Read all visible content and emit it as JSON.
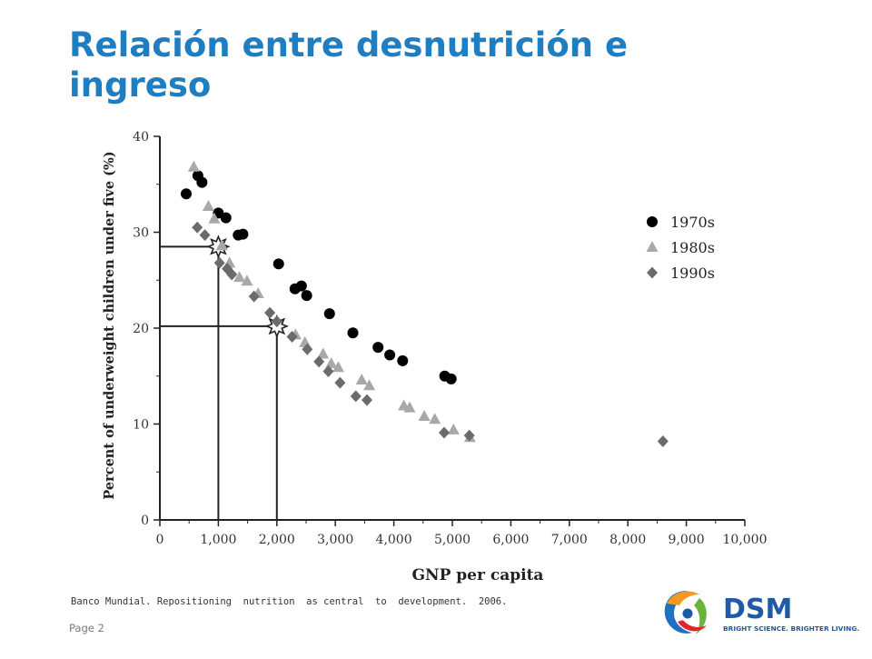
{
  "slide": {
    "title": "Relación entre desnutrición e ingreso",
    "source": "Banco Mundial. Repositioning  nutrition  as central  to  development.  2006.",
    "page_label": "Page 2"
  },
  "logo": {
    "name": "DSM",
    "tagline": "BRIGHT SCIENCE. BRIGHTER LIVING."
  },
  "colors": {
    "title": "#1f7dc2",
    "series_1970s": "#000000",
    "series_1980s": "#a8a8a8",
    "series_1990s": "#6b6b6b",
    "axis": "#222222",
    "logo_text": "#1f5aa6"
  },
  "chart_data": {
    "type": "scatter",
    "xlabel": "GNP per capita",
    "ylabel": "Percent of underweight children under five (%)",
    "xlim": [
      0,
      10000
    ],
    "ylim": [
      0,
      40
    ],
    "x_ticks": [
      "0",
      "1,000",
      "2,000",
      "3,000",
      "4,000",
      "5,000",
      "6,000",
      "7,000",
      "8,000",
      "9,000",
      "10,000"
    ],
    "y_ticks": [
      "0",
      "10",
      "20",
      "30",
      "40"
    ],
    "legend_position": "right",
    "series": [
      {
        "name": "1970s",
        "marker": "circle",
        "points": [
          [
            450,
            34
          ],
          [
            650,
            35.9
          ],
          [
            720,
            35.2
          ],
          [
            1000,
            32
          ],
          [
            1130,
            31.5
          ],
          [
            1340,
            29.7
          ],
          [
            1420,
            29.8
          ],
          [
            2030,
            26.7
          ],
          [
            2310,
            24.1
          ],
          [
            2420,
            24.4
          ],
          [
            2510,
            23.4
          ],
          [
            2900,
            21.5
          ],
          [
            3300,
            19.5
          ],
          [
            3730,
            18.0
          ],
          [
            3930,
            17.2
          ],
          [
            4150,
            16.6
          ],
          [
            4870,
            15.0
          ],
          [
            4980,
            14.7
          ]
        ]
      },
      {
        "name": "1980s",
        "marker": "triangle",
        "points": [
          [
            580,
            36.8
          ],
          [
            830,
            32.7
          ],
          [
            930,
            31.4
          ],
          [
            1060,
            28.6
          ],
          [
            1190,
            26.8
          ],
          [
            1360,
            25.3
          ],
          [
            1490,
            24.9
          ],
          [
            1680,
            23.6
          ],
          [
            2320,
            19.3
          ],
          [
            2480,
            18.5
          ],
          [
            2790,
            17.3
          ],
          [
            2930,
            16.3
          ],
          [
            3050,
            15.9
          ],
          [
            3450,
            14.6
          ],
          [
            3580,
            14.0
          ],
          [
            4170,
            11.9
          ],
          [
            4270,
            11.7
          ],
          [
            4520,
            10.8
          ],
          [
            4700,
            10.5
          ],
          [
            5020,
            9.4
          ],
          [
            5300,
            8.6
          ]
        ]
      },
      {
        "name": "1990s",
        "marker": "diamond",
        "points": [
          [
            640,
            30.5
          ],
          [
            770,
            29.7
          ],
          [
            1020,
            26.8
          ],
          [
            1150,
            26.2
          ],
          [
            1230,
            25.6
          ],
          [
            1610,
            23.3
          ],
          [
            1880,
            21.6
          ],
          [
            2000,
            20.7
          ],
          [
            2260,
            19.1
          ],
          [
            2520,
            17.8
          ],
          [
            2720,
            16.5
          ],
          [
            2880,
            15.5
          ],
          [
            3080,
            14.3
          ],
          [
            3350,
            12.9
          ],
          [
            3540,
            12.5
          ],
          [
            4860,
            9.1
          ],
          [
            5290,
            8.8
          ],
          [
            8600,
            8.2
          ]
        ]
      }
    ],
    "reference_lines": [
      {
        "x": 1000,
        "y": 28.5
      },
      {
        "x": 2000,
        "y": 20.2
      }
    ]
  }
}
